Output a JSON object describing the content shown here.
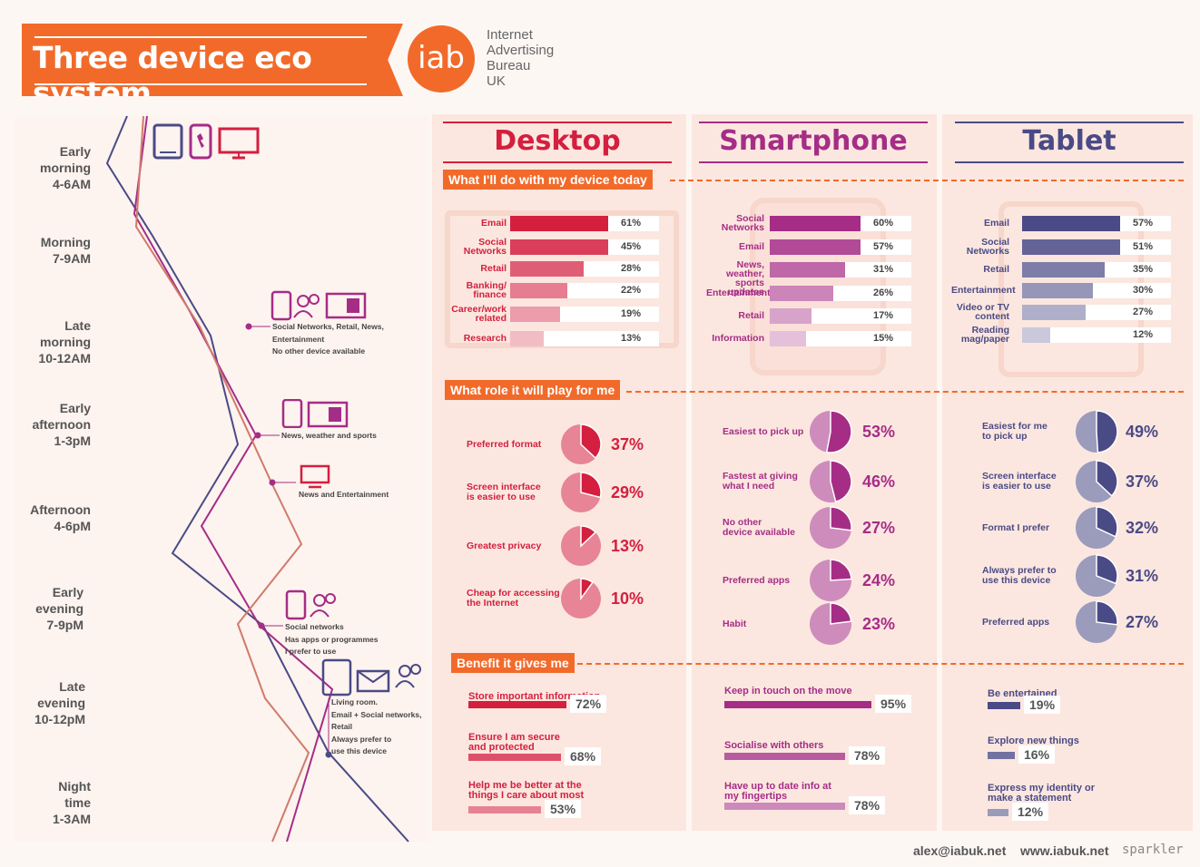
{
  "header": {
    "title": "Three device eco system",
    "logo": "iab",
    "org_lines": [
      "Internet",
      "Advertising",
      "Bureau",
      "UK"
    ]
  },
  "columns": {
    "desktop": "Desktop",
    "smartphone": "Smartphone",
    "tablet": "Tablet"
  },
  "sections": {
    "today": "What I'll do with my device today",
    "role": "What role it will play for me",
    "benefit": "Benefit it gives me"
  },
  "colors": {
    "orange": "#f26a2a",
    "desktop": "#d41f3f",
    "smartphone": "#a52d86",
    "tablet": "#4a4a86"
  },
  "timeline": {
    "labels": [
      [
        "Early",
        "morning",
        "4-6AM"
      ],
      [
        "Morning",
        "7-9AM"
      ],
      [
        "Late",
        "morning",
        "10-12AM"
      ],
      [
        "Early",
        "afternoon",
        "1-3pM"
      ],
      [
        "Afternoon",
        "4-6pM"
      ],
      [
        "Early",
        "evening",
        "7-9pM"
      ],
      [
        "Late",
        "evening",
        "10-12pM"
      ],
      [
        "Night",
        "time",
        "1-3AM"
      ]
    ],
    "annotations": [
      [
        "Social Networks, Retail, News,",
        "Entertainment",
        "No other device available"
      ],
      [
        "News, weather and sports"
      ],
      [
        "News and Entertainment"
      ],
      [
        "Social networks",
        "Has apps or programmes",
        "I prefer to use"
      ],
      [
        "Living room.",
        "Email + Social networks,",
        "Retail",
        "Always prefer to",
        "use this device"
      ]
    ]
  },
  "chart_data": [
    {
      "type": "bar",
      "title": "What I'll do with my device today",
      "series": [
        {
          "name": "Desktop",
          "values": [
            61,
            45,
            28,
            22,
            19,
            13
          ]
        }
      ],
      "categories": [
        [
          "Email"
        ],
        [
          "Social",
          "Networks"
        ],
        [
          "Retail"
        ],
        [
          "Banking/",
          "finance"
        ],
        [
          "Career/work",
          "related"
        ],
        [
          "Research"
        ]
      ],
      "ylim": [
        0,
        100
      ]
    },
    {
      "type": "bar",
      "title": "What I'll do with my device today",
      "series": [
        {
          "name": "Smartphone",
          "values": [
            60,
            57,
            31,
            26,
            17,
            15
          ]
        }
      ],
      "categories": [
        [
          "Social",
          "Networks"
        ],
        [
          "Email"
        ],
        [
          "News, weather,",
          "sports updates"
        ],
        [
          "Entertainment"
        ],
        [
          "Retail"
        ],
        [
          "Information"
        ]
      ],
      "ylim": [
        0,
        100
      ]
    },
    {
      "type": "bar",
      "title": "What I'll do with my device today",
      "series": [
        {
          "name": "Tablet",
          "values": [
            57,
            51,
            35,
            30,
            27,
            12
          ]
        }
      ],
      "categories": [
        [
          "Email"
        ],
        [
          "Social",
          "Networks"
        ],
        [
          "Retail"
        ],
        [
          "Entertainment"
        ],
        [
          "Video or TV",
          "content"
        ],
        [
          "Reading",
          "mag/paper"
        ]
      ],
      "ylim": [
        0,
        100
      ]
    },
    {
      "type": "pie",
      "title": "What role it will play for me",
      "series": [
        {
          "name": "Desktop",
          "values": [
            37,
            29,
            13,
            10
          ]
        }
      ],
      "categories": [
        [
          "Preferred format"
        ],
        [
          "Screen interface",
          "is easier to use"
        ],
        [
          "Greatest privacy"
        ],
        [
          "Cheap for accessing",
          "the Internet"
        ]
      ]
    },
    {
      "type": "pie",
      "title": "What role it will play for me",
      "series": [
        {
          "name": "Smartphone",
          "values": [
            53,
            46,
            27,
            24,
            23
          ]
        }
      ],
      "categories": [
        [
          "Easiest to pick up"
        ],
        [
          "Fastest at giving",
          "what I need"
        ],
        [
          "No other",
          "device available"
        ],
        [
          "Preferred apps"
        ],
        [
          "Habit"
        ]
      ]
    },
    {
      "type": "pie",
      "title": "What role it will play for me",
      "series": [
        {
          "name": "Tablet",
          "values": [
            49,
            37,
            32,
            31,
            27
          ]
        }
      ],
      "categories": [
        [
          "Easiest for me",
          "to pick up"
        ],
        [
          "Screen interface",
          "is easier to use"
        ],
        [
          "Format I prefer"
        ],
        [
          "Always prefer to",
          "use this device"
        ],
        [
          "Preferred apps"
        ]
      ]
    },
    {
      "type": "bar",
      "title": "Benefit it gives me",
      "series": [
        {
          "name": "Desktop",
          "values": [
            72,
            68,
            53
          ]
        }
      ],
      "categories": [
        [
          "Store important information"
        ],
        [
          "Ensure I am secure",
          "and protected"
        ],
        [
          "Help me be better at the",
          "things I care about most"
        ]
      ],
      "ylim": [
        0,
        100
      ]
    },
    {
      "type": "bar",
      "title": "Benefit it gives me",
      "series": [
        {
          "name": "Smartphone",
          "values": [
            95,
            78,
            78
          ]
        }
      ],
      "categories": [
        [
          "Keep in touch on the move"
        ],
        [
          "Socialise with others"
        ],
        [
          "Have up to date info at",
          "my fingertips"
        ]
      ],
      "ylim": [
        0,
        100
      ]
    },
    {
      "type": "bar",
      "title": "Benefit it gives me",
      "series": [
        {
          "name": "Tablet",
          "values": [
            19,
            16,
            12
          ]
        }
      ],
      "categories": [
        [
          "Be entertained"
        ],
        [
          "Explore new things"
        ],
        [
          "Express my identity or",
          "make a statement"
        ]
      ],
      "ylim": [
        0,
        100
      ]
    }
  ],
  "footer": {
    "email": "alex@iabuk.net",
    "web": "www.iabuk.net",
    "brand": "sparkler"
  }
}
